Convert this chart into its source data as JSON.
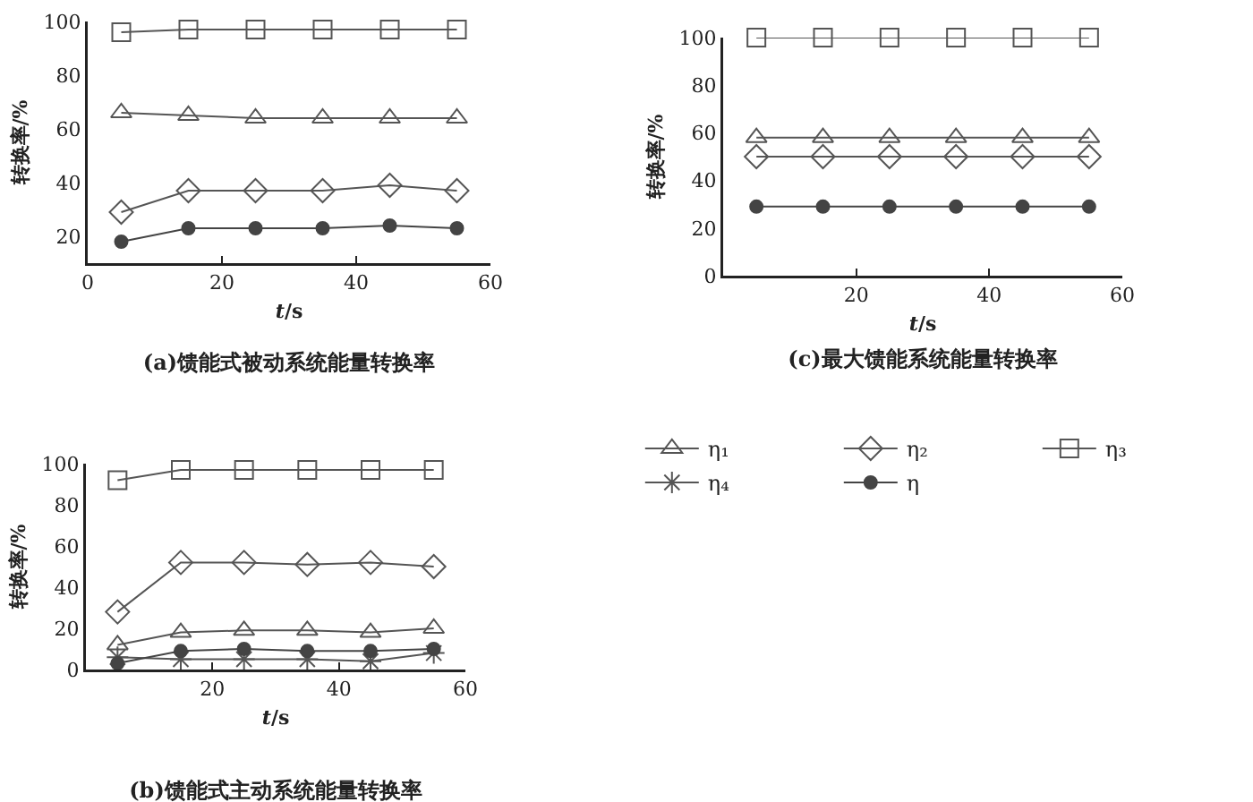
{
  "chart_data": [
    {
      "type": "line",
      "title": "(a)馈能式被动系统能量转换率",
      "xlabel": "t/s",
      "ylabel": "转换率/%",
      "x": [
        5,
        15,
        25,
        35,
        45,
        55
      ],
      "xlim": [
        0,
        60
      ],
      "xticks": [
        0,
        20,
        40,
        60
      ],
      "ylim": [
        10,
        100
      ],
      "yticks": [
        20,
        40,
        60,
        80,
        100
      ],
      "grid": false,
      "legend": false,
      "series": [
        {
          "color": "#555555",
          "marker": "triangle",
          "values": [
            66,
            65,
            64,
            64,
            64,
            64
          ]
        },
        {
          "color": "#555555",
          "marker": "diamond",
          "values": [
            29,
            37,
            37,
            37,
            39,
            37
          ]
        },
        {
          "color": "#555555",
          "marker": "square",
          "values": [
            96,
            97,
            97,
            97,
            97,
            97
          ]
        },
        {
          "color": "#444444",
          "marker": "circle",
          "values": [
            18,
            23,
            23,
            23,
            24,
            23
          ]
        }
      ]
    },
    {
      "type": "line",
      "title": "(b)馈能式主动系统能量转换率",
      "xlabel": "t/s",
      "ylabel": "转换率/%",
      "x": [
        5,
        15,
        25,
        35,
        45,
        55
      ],
      "xlim": [
        0,
        60
      ],
      "xticks": [
        20,
        40,
        60
      ],
      "ylim": [
        0,
        100
      ],
      "yticks": [
        0,
        20,
        40,
        60,
        80,
        100
      ],
      "grid": false,
      "legend": "top right",
      "series": [
        {
          "name": "η₁",
          "color": "#555555",
          "marker": "triangle",
          "values": [
            12,
            18,
            19,
            19,
            18,
            20
          ]
        },
        {
          "name": "η₂",
          "color": "#555555",
          "marker": "diamond",
          "values": [
            28,
            52,
            52,
            51,
            52,
            50
          ]
        },
        {
          "name": "η₃",
          "color": "#555555",
          "marker": "square",
          "values": [
            92,
            97,
            97,
            97,
            97,
            97
          ]
        },
        {
          "name": "η₄",
          "color": "#555555",
          "marker": "cross",
          "values": [
            6,
            5,
            5,
            5,
            4,
            8
          ]
        },
        {
          "name": "η",
          "color": "#444444",
          "marker": "circle",
          "values": [
            3,
            9,
            10,
            9,
            9,
            10
          ]
        }
      ]
    },
    {
      "type": "line",
      "title": "(c)最大馈能系统能量转换率",
      "xlabel": "t/s",
      "ylabel": "转换率/%",
      "x": [
        5,
        15,
        25,
        35,
        45,
        55
      ],
      "xlim": [
        0,
        60
      ],
      "xticks": [
        20,
        40,
        60
      ],
      "ylim": [
        0,
        100
      ],
      "yticks": [
        0,
        20,
        40,
        60,
        80,
        100
      ],
      "grid": false,
      "legend": false,
      "series": [
        {
          "color": "#555555",
          "marker": "triangle",
          "values": [
            58,
            58,
            58,
            58,
            58,
            58
          ]
        },
        {
          "color": "#555555",
          "marker": "diamond",
          "values": [
            50,
            50,
            50,
            50,
            50,
            50
          ]
        },
        {
          "color": "#555555",
          "marker": "square",
          "values": [
            100,
            100,
            100,
            100,
            100,
            100
          ]
        },
        {
          "color": "#444444",
          "marker": "circle",
          "values": [
            29,
            29,
            29,
            29,
            29,
            29
          ]
        }
      ]
    }
  ]
}
